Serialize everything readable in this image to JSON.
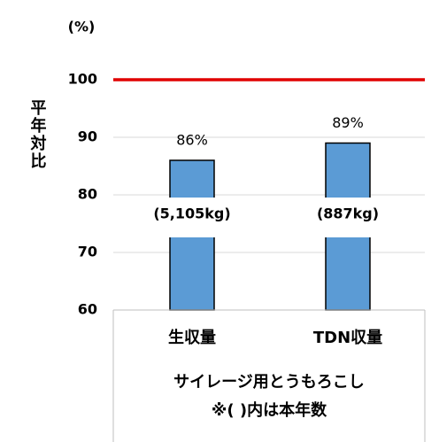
{
  "chart_data": {
    "type": "bar",
    "y_unit": "(%)",
    "y_label": "平年対比",
    "categories": [
      "生収量",
      "TDN収量"
    ],
    "values": [
      86,
      89
    ],
    "value_labels": [
      "86%",
      "89%"
    ],
    "bar_notes": [
      "(5,105kg)",
      "(887kg)"
    ],
    "color": "#5b9bd5",
    "ylim": [
      60,
      100
    ],
    "yticks": [
      60,
      70,
      80,
      90,
      100
    ],
    "grid": true,
    "reference_line": {
      "value": 100,
      "color": "#e00000"
    },
    "x_label": "サイレージ用とうもろこし",
    "note": "※( )内は本年数"
  }
}
